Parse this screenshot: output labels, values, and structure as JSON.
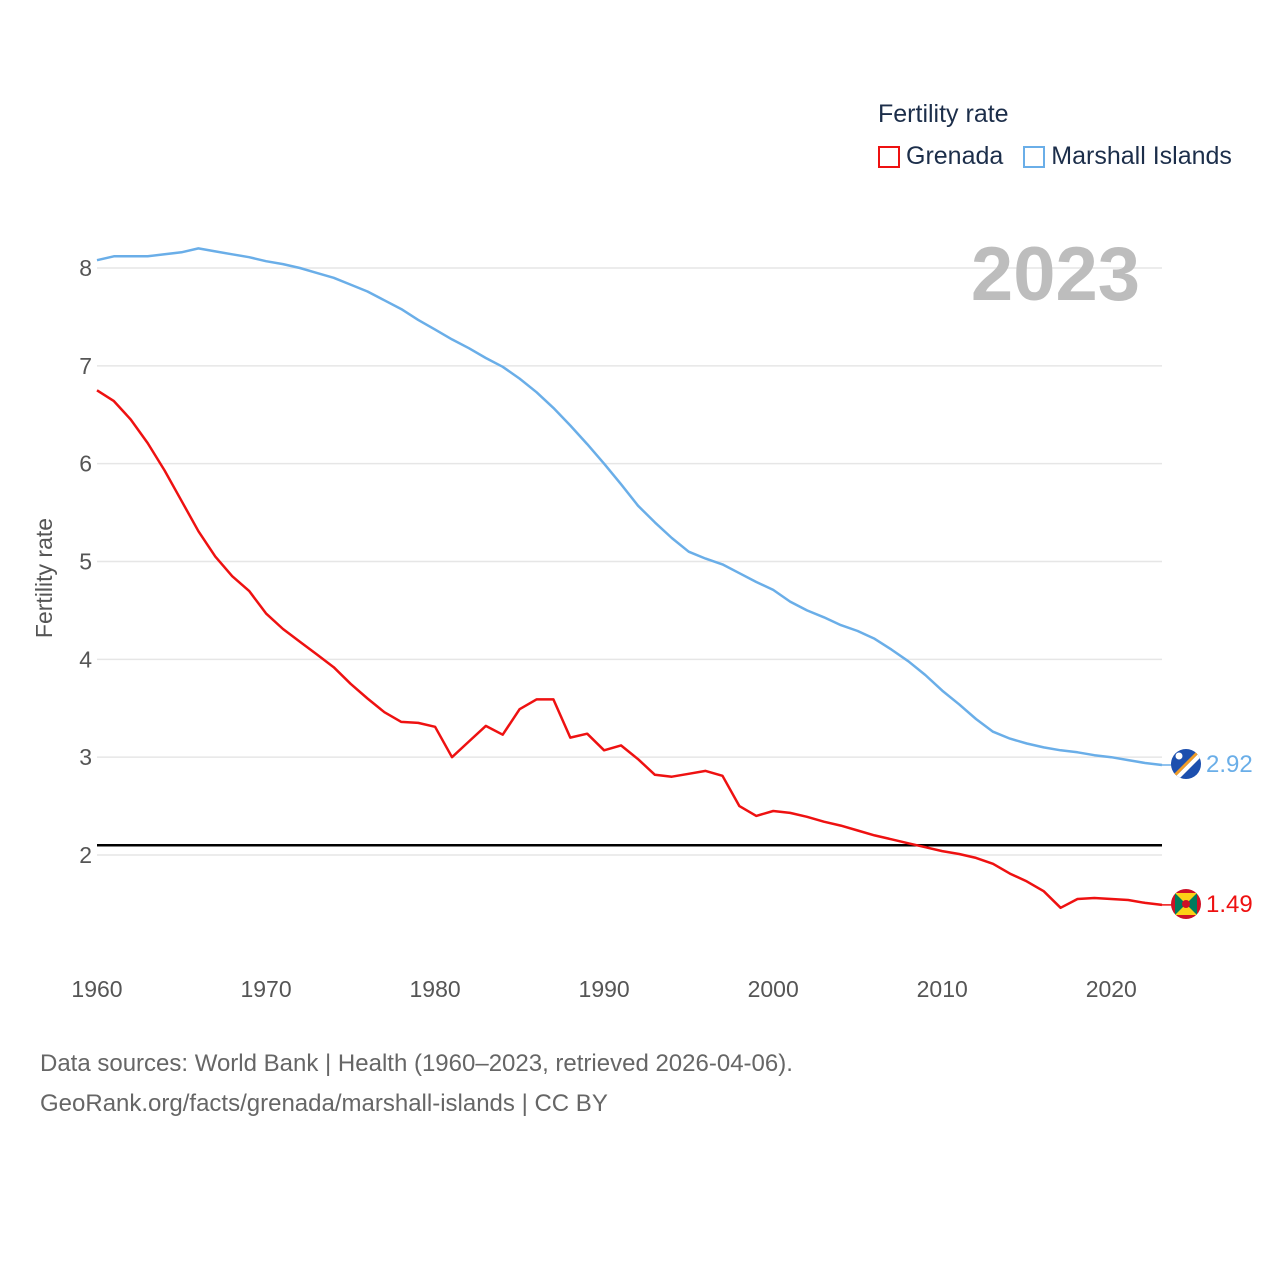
{
  "legend": {
    "title": "Fertility rate",
    "items": [
      {
        "label": "Grenada",
        "color": "#ee1111"
      },
      {
        "label": "Marshall Islands",
        "color": "#6aaee8"
      }
    ]
  },
  "year_label": "2023",
  "sources": {
    "line1": "Data sources: World Bank | Health (1960–2023, retrieved 2026-04-06).",
    "line2": "GeoRank.org/facts/grenada/marshall-islands | CC BY"
  },
  "chart_data": {
    "type": "line",
    "title": "",
    "xlabel": "",
    "ylabel": "Fertility rate",
    "xlim": [
      1960,
      2023
    ],
    "ylim": [
      1,
      8.3
    ],
    "x_ticks": [
      1960,
      1970,
      1980,
      1990,
      2000,
      2010,
      2020
    ],
    "y_ticks": [
      2,
      3,
      4,
      5,
      6,
      7,
      8
    ],
    "reference_line": 2.1,
    "x": [
      1960,
      1961,
      1962,
      1963,
      1964,
      1965,
      1966,
      1967,
      1968,
      1969,
      1970,
      1971,
      1972,
      1973,
      1974,
      1975,
      1976,
      1977,
      1978,
      1979,
      1980,
      1981,
      1982,
      1983,
      1984,
      1985,
      1986,
      1987,
      1988,
      1989,
      1990,
      1991,
      1992,
      1993,
      1994,
      1995,
      1996,
      1997,
      1998,
      1999,
      2000,
      2001,
      2002,
      2003,
      2004,
      2005,
      2006,
      2007,
      2008,
      2009,
      2010,
      2011,
      2012,
      2013,
      2014,
      2015,
      2016,
      2017,
      2018,
      2019,
      2020,
      2021,
      2022,
      2023
    ],
    "series": [
      {
        "name": "Marshall Islands",
        "color": "#6aaee8",
        "end_label": "2.92",
        "values": [
          8.08,
          8.12,
          8.12,
          8.12,
          8.14,
          8.16,
          8.2,
          8.17,
          8.14,
          8.11,
          8.07,
          8.04,
          8.0,
          7.95,
          7.9,
          7.83,
          7.76,
          7.67,
          7.58,
          7.47,
          7.37,
          7.27,
          7.18,
          7.08,
          6.99,
          6.87,
          6.73,
          6.57,
          6.39,
          6.2,
          6.0,
          5.79,
          5.57,
          5.4,
          5.24,
          5.1,
          5.03,
          4.97,
          4.88,
          4.79,
          4.71,
          4.59,
          4.5,
          4.43,
          4.35,
          4.29,
          4.21,
          4.1,
          3.98,
          3.84,
          3.68,
          3.54,
          3.39,
          3.26,
          3.19,
          3.14,
          3.1,
          3.07,
          3.05,
          3.02,
          3.0,
          2.97,
          2.94,
          2.92
        ]
      },
      {
        "name": "Grenada",
        "color": "#ee1111",
        "end_label": "1.49",
        "values": [
          6.75,
          6.64,
          6.45,
          6.21,
          5.93,
          5.62,
          5.31,
          5.05,
          4.85,
          4.7,
          4.47,
          4.31,
          4.18,
          4.05,
          3.92,
          3.75,
          3.6,
          3.46,
          3.36,
          3.35,
          3.31,
          3.0,
          3.16,
          3.32,
          3.23,
          3.49,
          3.59,
          3.59,
          3.2,
          3.24,
          3.07,
          3.12,
          2.98,
          2.82,
          2.8,
          2.83,
          2.86,
          2.81,
          2.5,
          2.4,
          2.45,
          2.43,
          2.39,
          2.34,
          2.3,
          2.25,
          2.2,
          2.16,
          2.12,
          2.08,
          2.04,
          2.01,
          1.97,
          1.91,
          1.81,
          1.73,
          1.63,
          1.46,
          1.55,
          1.56,
          1.55,
          1.54,
          1.51,
          1.49
        ]
      }
    ]
  }
}
